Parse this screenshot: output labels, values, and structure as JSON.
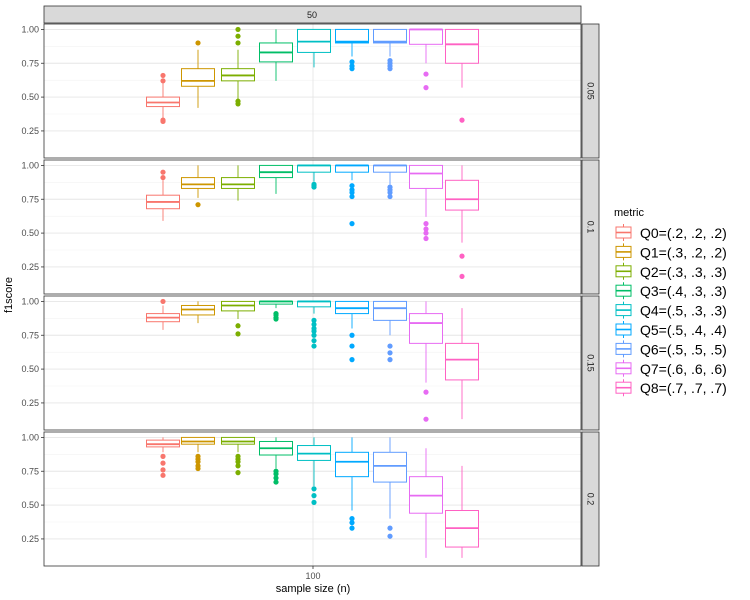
{
  "chart_data": {
    "type": "boxplot",
    "title": "",
    "xlabel": "sample size (n)",
    "ylabel": "f1score",
    "facet_col": "50",
    "x_tick": "100",
    "ylim": [
      0.05,
      1.04
    ],
    "y_ticks": [
      0.25,
      0.5,
      0.75,
      1.0
    ],
    "y_tick_labels": [
      "0.25",
      "0.50",
      "0.75",
      "1.00"
    ],
    "legend_title": "metric",
    "legend_position": "right",
    "series": [
      {
        "name": "Q0=(.2, .2, .2)",
        "color": "#F8766D"
      },
      {
        "name": "Q1=(.3, .2, .2)",
        "color": "#CD9600"
      },
      {
        "name": "Q2=(.3, .3, .3)",
        "color": "#7CAE00"
      },
      {
        "name": "Q3=(.4, .3, .3)",
        "color": "#00BE67"
      },
      {
        "name": "Q4=(.5, .3, .3)",
        "color": "#00BFC4"
      },
      {
        "name": "Q5=(.5, .4, .4)",
        "color": "#00A9FF"
      },
      {
        "name": "Q6=(.5, .5, .5)",
        "color": "#619CFF"
      },
      {
        "name": "Q7=(.6, .6, .6)",
        "color": "#E76BF3"
      },
      {
        "name": "Q8=(.7, .7, .7)",
        "color": "#FF61C3"
      }
    ],
    "panels": [
      {
        "label": "0.05",
        "boxes": [
          {
            "lw": 0.33,
            "q1": 0.43,
            "med": 0.46,
            "q3": 0.5,
            "uw": 0.6,
            "out": [
              0.32,
              0.33,
              0.62,
              0.66
            ]
          },
          {
            "lw": 0.42,
            "q1": 0.58,
            "med": 0.62,
            "q3": 0.71,
            "uw": 0.85,
            "out": [
              0.9
            ]
          },
          {
            "lw": 0.48,
            "q1": 0.62,
            "med": 0.66,
            "q3": 0.71,
            "uw": 0.85,
            "out": [
              0.45,
              0.47,
              0.9,
              0.95,
              1.0
            ]
          },
          {
            "lw": 0.62,
            "q1": 0.76,
            "med": 0.83,
            "q3": 0.9,
            "uw": 1.0,
            "out": []
          },
          {
            "lw": 0.72,
            "q1": 0.83,
            "med": 0.91,
            "q3": 1.0,
            "uw": 1.0,
            "out": []
          },
          {
            "lw": 0.8,
            "q1": 0.9,
            "med": 0.91,
            "q3": 1.0,
            "uw": 1.0,
            "out": [
              0.71,
              0.73,
              0.76
            ]
          },
          {
            "lw": 0.8,
            "q1": 0.9,
            "med": 0.91,
            "q3": 1.0,
            "uw": 1.0,
            "out": [
              0.71,
              0.73,
              0.75,
              0.77
            ]
          },
          {
            "lw": 0.75,
            "q1": 0.89,
            "med": 1.0,
            "q3": 1.0,
            "uw": 1.0,
            "out": [
              0.57,
              0.67
            ]
          },
          {
            "lw": 0.57,
            "q1": 0.75,
            "med": 0.89,
            "q3": 1.0,
            "uw": 1.0,
            "out": [
              0.33
            ]
          }
        ]
      },
      {
        "label": "0.1",
        "boxes": [
          {
            "lw": 0.59,
            "q1": 0.68,
            "med": 0.73,
            "q3": 0.78,
            "uw": 0.89,
            "out": [
              0.91,
              0.95
            ]
          },
          {
            "lw": 0.76,
            "q1": 0.83,
            "med": 0.86,
            "q3": 0.91,
            "uw": 1.0,
            "out": [
              0.71
            ]
          },
          {
            "lw": 0.74,
            "q1": 0.83,
            "med": 0.86,
            "q3": 0.91,
            "uw": 1.0,
            "out": []
          },
          {
            "lw": 0.79,
            "q1": 0.91,
            "med": 0.95,
            "q3": 1.0,
            "uw": 1.0,
            "out": []
          },
          {
            "lw": 0.88,
            "q1": 0.95,
            "med": 1.0,
            "q3": 1.0,
            "uw": 1.0,
            "out": [
              0.84,
              0.85,
              0.86
            ]
          },
          {
            "lw": 0.89,
            "q1": 0.95,
            "med": 1.0,
            "q3": 1.0,
            "uw": 1.0,
            "out": [
              0.57,
              0.77,
              0.8,
              0.82,
              0.85
            ]
          },
          {
            "lw": 0.86,
            "q1": 0.95,
            "med": 1.0,
            "q3": 1.0,
            "uw": 1.0,
            "out": [
              0.77,
              0.8,
              0.82,
              0.84
            ]
          },
          {
            "lw": 0.62,
            "q1": 0.83,
            "med": 0.94,
            "q3": 1.0,
            "uw": 1.0,
            "out": [
              0.46,
              0.5,
              0.53,
              0.57
            ]
          },
          {
            "lw": 0.43,
            "q1": 0.67,
            "med": 0.75,
            "q3": 0.89,
            "uw": 1.0,
            "out": [
              0.18,
              0.33
            ]
          }
        ]
      },
      {
        "label": "0.15",
        "boxes": [
          {
            "lw": 0.79,
            "q1": 0.85,
            "med": 0.88,
            "q3": 0.91,
            "uw": 0.97,
            "out": [
              1.0
            ]
          },
          {
            "lw": 0.84,
            "q1": 0.9,
            "med": 0.94,
            "q3": 0.97,
            "uw": 1.0,
            "out": []
          },
          {
            "lw": 0.87,
            "q1": 0.93,
            "med": 0.97,
            "q3": 1.0,
            "uw": 1.0,
            "out": [
              0.76,
              0.82
            ]
          },
          {
            "lw": 0.95,
            "q1": 0.98,
            "med": 1.0,
            "q3": 1.0,
            "uw": 1.0,
            "out": [
              0.87,
              0.88,
              0.9,
              0.91
            ]
          },
          {
            "lw": 0.91,
            "q1": 0.96,
            "med": 1.0,
            "q3": 1.0,
            "uw": 1.0,
            "out": [
              0.67,
              0.71,
              0.75,
              0.78,
              0.8,
              0.83,
              0.86
            ]
          },
          {
            "lw": 0.8,
            "q1": 0.91,
            "med": 0.95,
            "q3": 1.0,
            "uw": 1.0,
            "out": [
              0.57,
              0.67,
              0.75
            ]
          },
          {
            "lw": 0.75,
            "q1": 0.86,
            "med": 0.95,
            "q3": 1.0,
            "uw": 1.0,
            "out": [
              0.57,
              0.62,
              0.67
            ]
          },
          {
            "lw": 0.4,
            "q1": 0.69,
            "med": 0.84,
            "q3": 0.91,
            "uw": 1.0,
            "out": [
              0.13,
              0.33
            ]
          },
          {
            "lw": 0.13,
            "q1": 0.42,
            "med": 0.57,
            "q3": 0.69,
            "uw": 0.95,
            "out": []
          }
        ]
      },
      {
        "label": "0.2",
        "boxes": [
          {
            "lw": 0.89,
            "q1": 0.93,
            "med": 0.95,
            "q3": 0.98,
            "uw": 1.0,
            "out": [
              0.72,
              0.76,
              0.81,
              0.86
            ]
          },
          {
            "lw": 0.89,
            "q1": 0.95,
            "med": 0.97,
            "q3": 1.0,
            "uw": 1.0,
            "out": [
              0.77,
              0.79,
              0.82,
              0.84,
              0.86
            ]
          },
          {
            "lw": 0.89,
            "q1": 0.95,
            "med": 0.97,
            "q3": 1.0,
            "uw": 1.0,
            "out": [
              0.74,
              0.79,
              0.82,
              0.84,
              0.86
            ]
          },
          {
            "lw": 0.77,
            "q1": 0.87,
            "med": 0.92,
            "q3": 0.97,
            "uw": 1.0,
            "out": [
              0.67,
              0.7,
              0.73,
              0.75
            ]
          },
          {
            "lw": 0.64,
            "q1": 0.83,
            "med": 0.88,
            "q3": 0.94,
            "uw": 1.0,
            "out": [
              0.52,
              0.57,
              0.62
            ]
          },
          {
            "lw": 0.46,
            "q1": 0.71,
            "med": 0.82,
            "q3": 0.89,
            "uw": 1.0,
            "out": [
              0.33,
              0.37,
              0.4
            ]
          },
          {
            "lw": 0.4,
            "q1": 0.67,
            "med": 0.79,
            "q3": 0.89,
            "uw": 1.0,
            "out": [
              0.27,
              0.33
            ]
          },
          {
            "lw": 0.11,
            "q1": 0.44,
            "med": 0.57,
            "q3": 0.71,
            "uw": 0.92,
            "out": []
          },
          {
            "lw": 0.11,
            "q1": 0.19,
            "med": 0.33,
            "q3": 0.46,
            "uw": 0.79,
            "out": []
          }
        ]
      }
    ]
  }
}
